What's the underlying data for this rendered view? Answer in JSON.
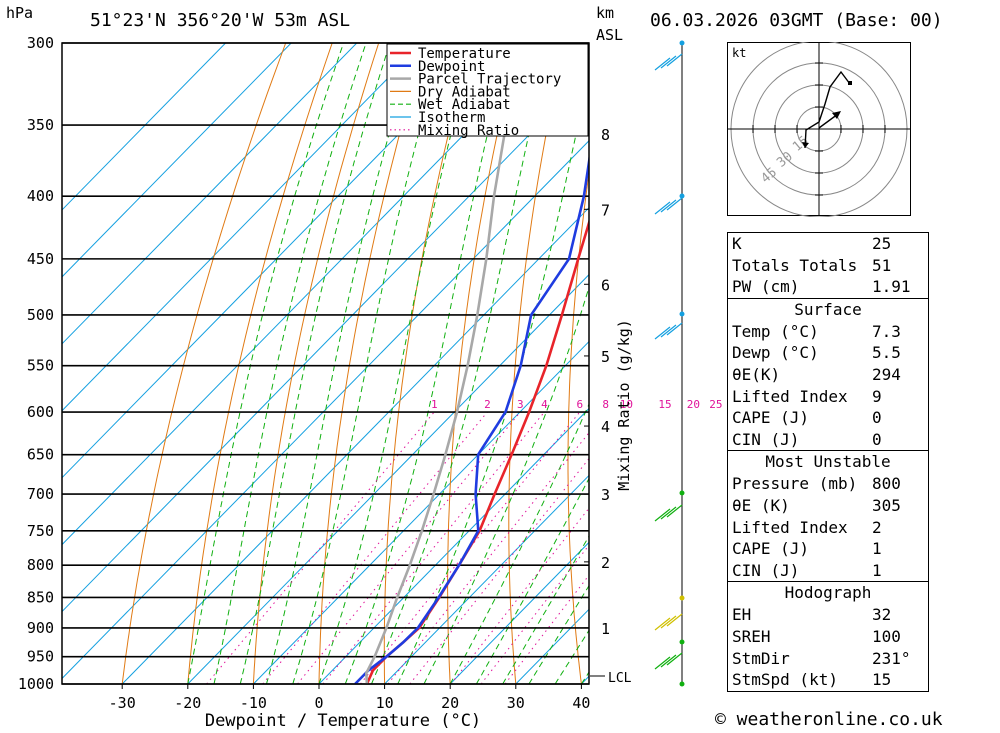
{
  "header": {
    "location": "51°23'N  356°20'W  53m  ASL",
    "datetime": "06.03.2026  03GMT  (Base: 00)"
  },
  "legend": [
    {
      "label": "Temperature",
      "color": "#e8242a"
    },
    {
      "label": "Dewpoint",
      "color": "#1f3ce0"
    },
    {
      "label": "Parcel Trajectory",
      "color": "#a8a8a8"
    },
    {
      "label": "Dry Adiabat",
      "color": "#e07a14"
    },
    {
      "label": "Wet Adiabat",
      "color": "#10b010"
    },
    {
      "label": "Isotherm",
      "color": "#14a0e0"
    },
    {
      "label": "Mixing Ratio",
      "color": "#e0139a"
    }
  ],
  "indices": {
    "basic": [
      {
        "k": "K",
        "v": "25"
      },
      {
        "k": "Totals Totals",
        "v": "51"
      },
      {
        "k": "PW (cm)",
        "v": "1.91"
      }
    ],
    "surface_title": "Surface",
    "surface": [
      {
        "k": "Temp (°C)",
        "v": "7.3"
      },
      {
        "k": "Dewp (°C)",
        "v": "5.5"
      },
      {
        "k": "θE(K)",
        "v": "294"
      },
      {
        "k": "Lifted Index",
        "v": "9"
      },
      {
        "k": "CAPE (J)",
        "v": "0"
      },
      {
        "k": "CIN (J)",
        "v": "0"
      }
    ],
    "mu_title": "Most Unstable",
    "mu": [
      {
        "k": "Pressure (mb)",
        "v": "800"
      },
      {
        "k": "θE (K)",
        "v": "305"
      },
      {
        "k": "Lifted Index",
        "v": "2"
      },
      {
        "k": "CAPE (J)",
        "v": "1"
      },
      {
        "k": "CIN (J)",
        "v": "1"
      }
    ],
    "hodo_title": "Hodograph",
    "hodo": [
      {
        "k": "EH",
        "v": "32"
      },
      {
        "k": "SREH",
        "v": "100"
      },
      {
        "k": "StmDir",
        "v": "231°"
      },
      {
        "k": "StmSpd (kt)",
        "v": "15"
      }
    ]
  },
  "footer": "© weatheronline.co.uk",
  "chart_data": {
    "type": "line",
    "subtype": "skew-T log-P",
    "xlabel": "Dewpoint / Temperature (°C)",
    "ylabel_units": "hPa",
    "km_label": "km",
    "km_label2": "ASL",
    "mixing_ratio_axis_label": "Mixing Ratio (g/kg)",
    "lcl_label": "LCL",
    "x_ticks": [
      -30,
      -20,
      -10,
      0,
      10,
      20,
      30,
      40
    ],
    "pressure_levels": [
      300,
      350,
      400,
      450,
      500,
      550,
      600,
      650,
      700,
      750,
      800,
      850,
      900,
      950,
      1000
    ],
    "km_ticks": [
      {
        "km": "1",
        "p": 900
      },
      {
        "km": "2",
        "p": 795
      },
      {
        "km": "3",
        "p": 700
      },
      {
        "km": "4",
        "p": 616
      },
      {
        "km": "5",
        "p": 540
      },
      {
        "km": "6",
        "p": 472
      },
      {
        "km": "7",
        "p": 410
      },
      {
        "km": "8",
        "p": 356
      }
    ],
    "mixing_ratio_labels": [
      "1",
      "2",
      "3",
      "4",
      "6",
      "8",
      "10",
      "15",
      "20",
      "25"
    ],
    "mixing_ratio_values": [
      1,
      2,
      3,
      4,
      6,
      8,
      10,
      15,
      20,
      25
    ],
    "series": [
      {
        "name": "Temperature",
        "color": "#e8242a",
        "points": [
          [
            1000,
            7.3
          ],
          [
            975,
            6.2
          ],
          [
            950,
            6.2
          ],
          [
            925,
            6.6
          ],
          [
            900,
            6.9
          ],
          [
            850,
            5.4
          ],
          [
            800,
            3.6
          ],
          [
            750,
            1.6
          ],
          [
            700,
            -1.6
          ],
          [
            650,
            -4.9
          ],
          [
            600,
            -8.6
          ],
          [
            550,
            -12.9
          ],
          [
            500,
            -18.1
          ],
          [
            450,
            -24.0
          ],
          [
            400,
            -30.5
          ],
          [
            350,
            -38.5
          ],
          [
            300,
            -47.0
          ]
        ]
      },
      {
        "name": "Dewpoint",
        "color": "#1f3ce0",
        "points": [
          [
            1000,
            5.5
          ],
          [
            975,
            5.5
          ],
          [
            950,
            6.2
          ],
          [
            925,
            6.6
          ],
          [
            900,
            6.7
          ],
          [
            850,
            5.3
          ],
          [
            800,
            3.6
          ],
          [
            750,
            1.4
          ],
          [
            700,
            -4.5
          ],
          [
            650,
            -10.0
          ],
          [
            600,
            -12.2
          ],
          [
            550,
            -16.8
          ],
          [
            500,
            -22.8
          ],
          [
            450,
            -25.4
          ],
          [
            400,
            -32.5
          ],
          [
            350,
            -41.5
          ],
          [
            300,
            -52.5
          ]
        ]
      },
      {
        "name": "Parcel Trajectory",
        "color": "#a8a8a8",
        "points": [
          [
            1000,
            7.3
          ],
          [
            980,
            5.6
          ],
          [
            950,
            4.4
          ],
          [
            900,
            1.9
          ],
          [
            850,
            -1.0
          ],
          [
            800,
            -3.9
          ],
          [
            750,
            -7.2
          ],
          [
            700,
            -10.9
          ],
          [
            650,
            -15.0
          ],
          [
            600,
            -19.6
          ],
          [
            550,
            -24.9
          ],
          [
            500,
            -31.0
          ],
          [
            450,
            -38.0
          ],
          [
            400,
            -46.2
          ],
          [
            350,
            -55.0
          ],
          [
            300,
            -64.8
          ]
        ]
      }
    ],
    "hodograph": {
      "unit": "kt",
      "rings": [
        "15",
        "30",
        "45"
      ]
    }
  }
}
